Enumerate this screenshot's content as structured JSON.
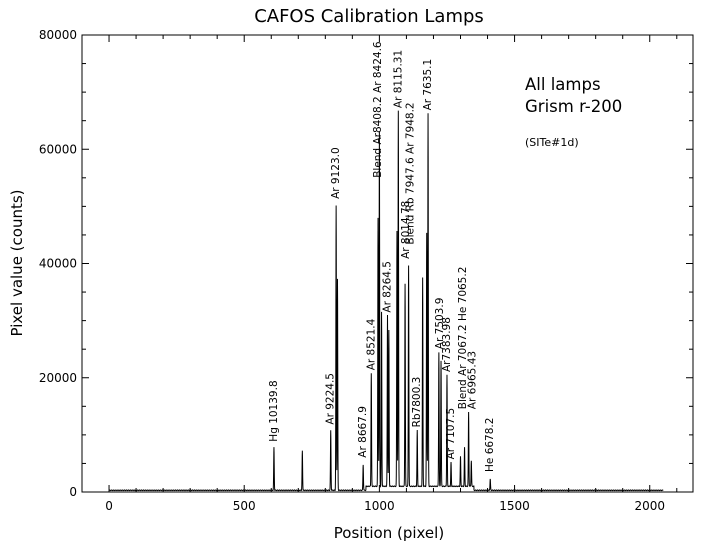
{
  "chart_data": {
    "type": "line",
    "title": "CAFOS  Calibration Lamps",
    "xlabel": "Position (pixel)",
    "ylabel": "Pixel value (counts)",
    "xlim": [
      -100,
      2160
    ],
    "ylim": [
      0,
      80000
    ],
    "xticks": [
      "0",
      "500",
      "1000",
      "1500",
      "2000"
    ],
    "yticks": [
      "0",
      "20000",
      "40000",
      "60000",
      "80000"
    ],
    "annotation_lines": [
      "All lamps",
      "Grism r-200"
    ],
    "annotation_sub": "(SITe#1d)",
    "peaks": [
      {
        "x": 610,
        "y": 7500
      },
      {
        "x": 715,
        "y": 6900
      },
      {
        "x": 820,
        "y": 10500
      },
      {
        "x": 840,
        "y": 49800
      },
      {
        "x": 845,
        "y": 37000
      },
      {
        "x": 940,
        "y": 4500
      },
      {
        "x": 970,
        "y": 19800
      },
      {
        "x": 995,
        "y": 47000
      },
      {
        "x": 1000,
        "y": 62000
      },
      {
        "x": 1008,
        "y": 30500
      },
      {
        "x": 1030,
        "y": 30000
      },
      {
        "x": 1035,
        "y": 27300
      },
      {
        "x": 1065,
        "y": 44700
      },
      {
        "x": 1070,
        "y": 65700
      },
      {
        "x": 1095,
        "y": 35500
      },
      {
        "x": 1108,
        "y": 38700
      },
      {
        "x": 1140,
        "y": 9800
      },
      {
        "x": 1160,
        "y": 36500
      },
      {
        "x": 1175,
        "y": 44300
      },
      {
        "x": 1180,
        "y": 65300
      },
      {
        "x": 1220,
        "y": 23500
      },
      {
        "x": 1228,
        "y": 22000
      },
      {
        "x": 1250,
        "y": 19500
      },
      {
        "x": 1265,
        "y": 4200
      },
      {
        "x": 1300,
        "y": 5200
      },
      {
        "x": 1315,
        "y": 6800
      },
      {
        "x": 1330,
        "y": 13000
      },
      {
        "x": 1340,
        "y": 4500
      },
      {
        "x": 1410,
        "y": 2000
      }
    ],
    "line_labels": [
      {
        "text": "Hg 10139.8",
        "x": 610,
        "y": 8800
      },
      {
        "text": "Ar 9224.5",
        "x": 820,
        "y": 11800
      },
      {
        "text": "Ar 9123.0",
        "x": 840,
        "y": 51300
      },
      {
        "text": "Ar 8667.9",
        "x": 940,
        "y": 6000
      },
      {
        "text": "Ar 8521.4",
        "x": 970,
        "y": 21300
      },
      {
        "text": "Blend Ar8408.2 Ar 8424.6",
        "x": 995,
        "y": 55000
      },
      {
        "text": "Ar 8264.5",
        "x": 1030,
        "y": 31400
      },
      {
        "text": "Ar 8115.31",
        "x": 1070,
        "y": 67200
      },
      {
        "text": "Ar 8014.78",
        "x": 1098,
        "y": 40800
      },
      {
        "text": "Blend Rb 7947.6 Ar 7948.2",
        "x": 1115,
        "y": 43300
      },
      {
        "text": "Rb7800.3",
        "x": 1140,
        "y": 11300
      },
      {
        "text": "Ar 7635.1",
        "x": 1180,
        "y": 66800
      },
      {
        "text": "Ar 7503.9",
        "x": 1225,
        "y": 25000
      },
      {
        "text": "Ar7383.98",
        "x": 1250,
        "y": 21000
      },
      {
        "text": "Ar 7107.5",
        "x": 1265,
        "y": 5700
      },
      {
        "text": "Blend Ar 7067.2 He 7065.2",
        "x": 1310,
        "y": 14500
      },
      {
        "text": "Ar 6965.43",
        "x": 1345,
        "y": 14500
      },
      {
        "text": "He 6678.2",
        "x": 1410,
        "y": 3500
      }
    ],
    "grid": false,
    "legend": "none"
  }
}
